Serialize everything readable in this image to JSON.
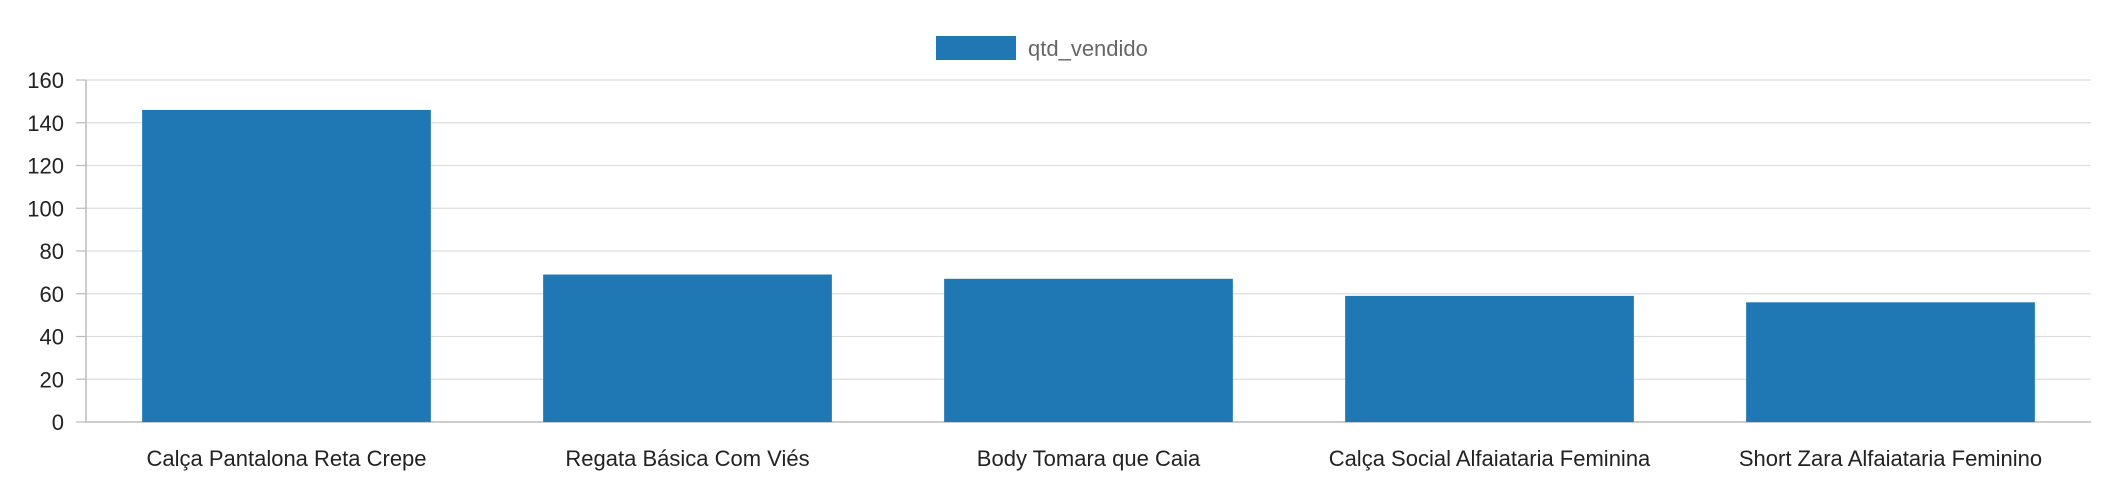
{
  "chart_data": {
    "type": "bar",
    "categories": [
      "Calça Pantalona Reta Crepe",
      "Regata Básica Com Viés",
      "Body Tomara que Caia",
      "Calça Social Alfaiataria Feminina",
      "Short Zara Alfaiataria Feminino"
    ],
    "series": [
      {
        "name": "qtd_vendido",
        "values": [
          146,
          69,
          67,
          59,
          56
        ],
        "color": "#1f77b4"
      }
    ],
    "ylim": [
      0,
      160
    ],
    "yticks": [
      0,
      20,
      40,
      60,
      80,
      100,
      120,
      140,
      160
    ],
    "grid": true,
    "legend_position": "top-center",
    "colors": {
      "gridline": "#dddddd",
      "axis": "#bbbbbb"
    }
  }
}
